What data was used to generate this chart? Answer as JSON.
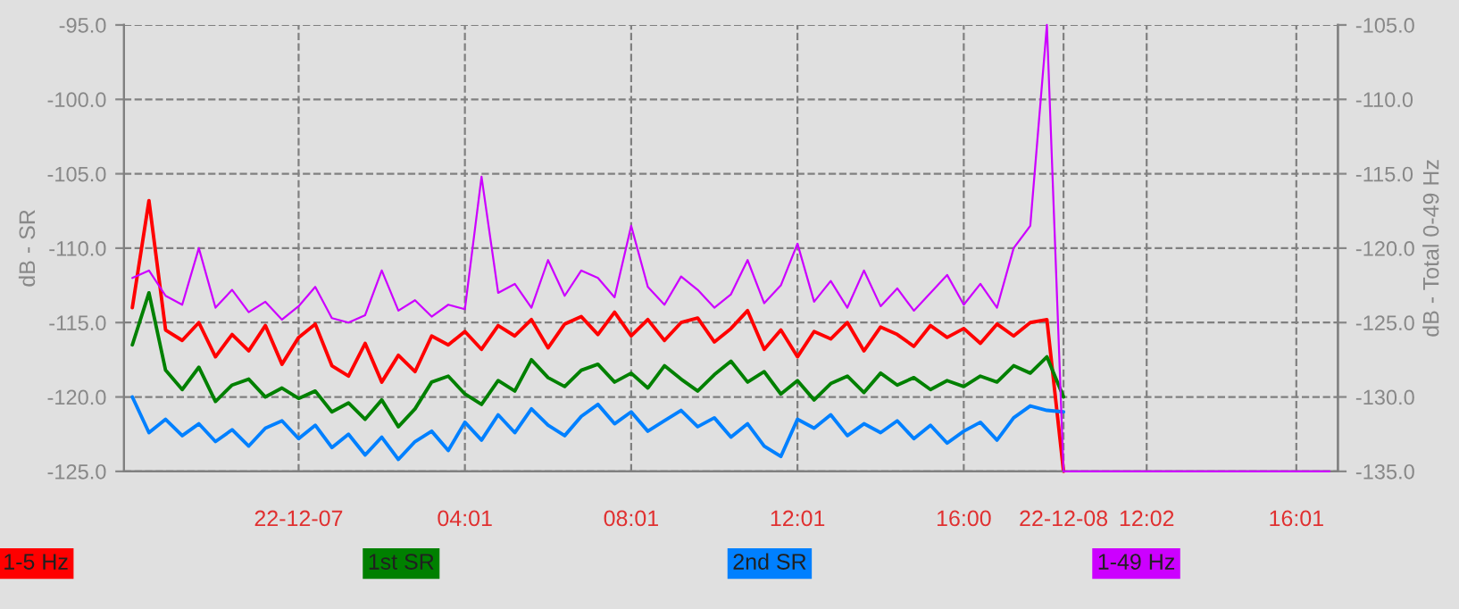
{
  "chart_data": {
    "type": "line",
    "ylabel": "dB - SR",
    "y2label": "dB - Total 0-49 Hz",
    "categories": [
      null,
      null,
      null,
      null,
      null,
      null,
      null,
      null,
      null,
      null,
      "22-12-07",
      null,
      null,
      null,
      null,
      null,
      null,
      null,
      null,
      null,
      "04:01",
      null,
      null,
      null,
      null,
      null,
      null,
      null,
      null,
      null,
      "08:01",
      null,
      null,
      null,
      null,
      null,
      null,
      null,
      null,
      null,
      "12:01",
      null,
      null,
      null,
      null,
      null,
      null,
      null,
      null,
      null,
      "16:00",
      null,
      null,
      null,
      null,
      null,
      "22-12-08",
      null,
      null,
      null,
      null,
      "12:02",
      null,
      null,
      null,
      null,
      null,
      null,
      null,
      null,
      "16:01",
      null,
      null
    ],
    "series": [
      {
        "name": "1-5 Hz",
        "color": "#ff0000",
        "values": [
          -114.0,
          -106.8,
          -115.5,
          -116.2,
          -115.0,
          -117.3,
          -115.8,
          -116.9,
          -115.2,
          -117.8,
          -116.0,
          -115.1,
          -117.9,
          -118.6,
          -116.4,
          -119.0,
          -117.2,
          -118.3,
          -115.9,
          -116.5,
          -115.6,
          -116.8,
          -115.2,
          -115.9,
          -114.8,
          -116.7,
          -115.1,
          -114.6,
          -115.8,
          -114.3,
          -115.9,
          -114.8,
          -116.2,
          -115.0,
          -114.7,
          -116.3,
          -115.4,
          -114.2,
          -116.8,
          -115.5,
          -117.3,
          -115.6,
          -116.1,
          -115.0,
          -116.9,
          -115.3,
          -115.8,
          -116.6,
          -115.2,
          -116.0,
          -115.4,
          -116.4,
          -115.1,
          -115.9,
          -115.0,
          -114.8,
          -125.0,
          null,
          null,
          null,
          null,
          null,
          null,
          null,
          null,
          null,
          null,
          null,
          null,
          null,
          null,
          null,
          null
        ]
      },
      {
        "name": "1st SR",
        "color": "#008000",
        "values": [
          -116.5,
          -113.0,
          -118.2,
          -119.5,
          -118.0,
          -120.3,
          -119.2,
          -118.8,
          -120.0,
          -119.4,
          -120.1,
          -119.6,
          -121.0,
          -120.4,
          -121.5,
          -120.2,
          -122.0,
          -120.8,
          -119.0,
          -118.6,
          -119.8,
          -120.5,
          -118.9,
          -119.6,
          -117.5,
          -118.7,
          -119.3,
          -118.2,
          -117.8,
          -119.0,
          -118.4,
          -119.4,
          -117.9,
          -118.8,
          -119.6,
          -118.5,
          -117.6,
          -119.0,
          -118.3,
          -119.8,
          -118.9,
          -120.2,
          -119.1,
          -118.6,
          -119.7,
          -118.4,
          -119.2,
          -118.7,
          -119.5,
          -118.9,
          -119.3,
          -118.6,
          -119.0,
          -117.9,
          -118.4,
          -117.3,
          -120.0,
          null,
          null,
          null,
          null,
          null,
          null,
          null,
          null,
          null,
          null,
          null,
          null,
          null,
          null,
          null,
          null
        ]
      },
      {
        "name": "2nd SR",
        "color": "#0080ff",
        "values": [
          -120.0,
          -122.4,
          -121.5,
          -122.6,
          -121.8,
          -123.0,
          -122.2,
          -123.3,
          -122.1,
          -121.6,
          -122.8,
          -121.9,
          -123.4,
          -122.5,
          -123.9,
          -122.7,
          -124.2,
          -123.0,
          -122.3,
          -123.6,
          -121.7,
          -122.9,
          -121.2,
          -122.4,
          -120.8,
          -121.9,
          -122.6,
          -121.3,
          -120.5,
          -121.8,
          -121.0,
          -122.3,
          -121.6,
          -120.9,
          -122.0,
          -121.4,
          -122.7,
          -121.8,
          -123.3,
          -124.0,
          -121.5,
          -122.1,
          -121.2,
          -122.6,
          -121.8,
          -122.4,
          -121.6,
          -122.8,
          -121.9,
          -123.1,
          -122.3,
          -121.7,
          -122.9,
          -121.4,
          -120.6,
          -120.9,
          -121.0,
          null,
          null,
          null,
          null,
          null,
          null,
          null,
          null,
          null,
          null,
          null,
          null,
          null,
          null,
          null,
          null
        ]
      },
      {
        "name": "1-49 Hz",
        "color": "#cc00ff",
        "axis": "y2",
        "values": [
          -122.0,
          -121.5,
          -123.2,
          -123.8,
          -120.0,
          -124.0,
          -122.8,
          -124.3,
          -123.6,
          -124.8,
          -123.9,
          -122.6,
          -124.7,
          -125.0,
          -124.5,
          -121.5,
          -124.2,
          -123.5,
          -124.6,
          -123.8,
          -124.1,
          -115.2,
          -123.0,
          -122.4,
          -124.0,
          -120.8,
          -123.2,
          -121.5,
          -122.0,
          -123.3,
          -118.5,
          -122.6,
          -123.8,
          -121.9,
          -122.8,
          -124.0,
          -123.1,
          -120.8,
          -123.7,
          -122.5,
          -119.7,
          -123.6,
          -122.2,
          -124.0,
          -121.5,
          -123.9,
          -122.7,
          -124.2,
          -123.0,
          -121.8,
          -123.8,
          -122.4,
          -124.0,
          -120.0,
          -118.5,
          -105.0,
          -135.0,
          -135.0,
          -135.0,
          -135.0,
          -135.0,
          -135.0,
          -135.0,
          -135.0,
          -135.0,
          -135.0,
          -135.0,
          -135.0,
          -135.0,
          -135.0,
          -135.0,
          -135.0,
          -135.0
        ]
      }
    ],
    "ylim": [
      -125,
      -95
    ],
    "yticks": [
      {
        "value": -125,
        "label": "-125.0"
      },
      {
        "value": -120,
        "label": "-120.0"
      },
      {
        "value": -115,
        "label": "-115.0"
      },
      {
        "value": -110,
        "label": "-110.0"
      },
      {
        "value": -105,
        "label": "-105.0"
      },
      {
        "value": -100,
        "label": "-100.0"
      },
      {
        "value": -95,
        "label": "-95.0"
      }
    ],
    "y2lim": [
      -135,
      -105
    ],
    "y2ticks": [
      {
        "value": -135,
        "label": "-135.0"
      },
      {
        "value": -130,
        "label": "-130.0"
      },
      {
        "value": -125,
        "label": "-125.0"
      },
      {
        "value": -120,
        "label": "-120.0"
      },
      {
        "value": -115,
        "label": "-115.0"
      },
      {
        "value": -110,
        "label": "-110.0"
      },
      {
        "value": -105,
        "label": "-105.0"
      }
    ],
    "grid": true,
    "legend": "bottom",
    "line_style": "solid"
  }
}
